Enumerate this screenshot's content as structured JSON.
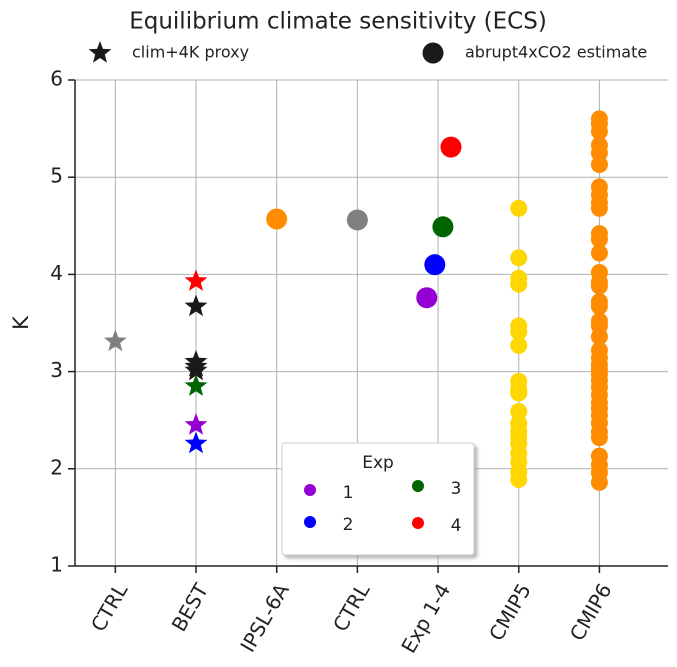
{
  "chart_data": {
    "type": "scatter",
    "title": "Equilibrium climate sensitivity (ECS)",
    "y_label": "K",
    "xlim": [
      -0.5,
      6.85
    ],
    "xticks": [
      {
        "value": 0,
        "label": "CTRL"
      },
      {
        "value": 1,
        "label": "BEST"
      },
      {
        "value": 2,
        "label": "IPSL-6A"
      },
      {
        "value": 3,
        "label": "CTRL"
      },
      {
        "value": 4,
        "label": "Exp 1-4"
      },
      {
        "value": 5,
        "label": "CMIP5"
      },
      {
        "value": 6,
        "label": "CMIP6"
      }
    ],
    "ylim": [
      1,
      6
    ],
    "yticks": [
      1,
      2,
      3,
      4,
      5,
      6
    ],
    "grid": true,
    "series": [
      {
        "name": "clim+4K proxy",
        "marker": "star",
        "color": "#1a1a1a",
        "x": [
          0,
          1,
          1,
          1,
          1,
          1,
          1,
          1,
          1
        ],
        "values": [
          3.31,
          3.93,
          3.67,
          3.1,
          3.05,
          3.01,
          2.85,
          2.45,
          2.26
        ],
        "colors": [
          "#808080",
          "#ff0000",
          "#1a1a1a",
          "#1a1a1a",
          "#1a1a1a",
          "#1a1a1a",
          "#006400",
          "#9400d3",
          "#0000ff"
        ]
      },
      {
        "name": "abrupt4xCO2 estimate",
        "marker": "circle",
        "color": "#1a1a1a",
        "x": [
          2,
          3,
          3.86,
          3.96,
          4.06,
          4.16,
          5,
          5,
          5,
          5,
          5,
          5,
          5,
          5,
          5,
          5,
          5,
          5,
          5,
          5,
          5,
          5,
          5,
          5,
          5,
          6,
          6,
          6,
          6,
          6,
          6,
          6,
          6,
          6,
          6,
          6,
          6,
          6,
          6,
          6,
          6,
          6,
          6,
          6,
          6,
          6,
          6,
          6,
          6,
          6,
          6,
          6,
          6,
          6,
          6,
          6,
          6,
          6,
          6,
          6,
          6,
          6,
          6,
          6
        ],
        "values": [
          4.57,
          4.56,
          3.76,
          4.1,
          4.49,
          5.31,
          4.68,
          4.17,
          3.96,
          3.9,
          3.47,
          3.41,
          3.27,
          2.9,
          2.82,
          2.78,
          2.59,
          2.47,
          2.39,
          2.33,
          2.26,
          2.16,
          2.07,
          1.97,
          1.89,
          5.6,
          5.55,
          5.47,
          5.33,
          5.25,
          5.13,
          4.9,
          4.82,
          4.74,
          4.68,
          4.42,
          4.36,
          4.22,
          4.02,
          3.92,
          3.88,
          3.72,
          3.67,
          3.52,
          3.47,
          3.36,
          3.22,
          3.14,
          3.07,
          3.02,
          2.97,
          2.91,
          2.84,
          2.76,
          2.68,
          2.62,
          2.55,
          2.47,
          2.38,
          2.32,
          2.13,
          2.04,
          1.96,
          1.86
        ],
        "colors": [
          "#ff8c00",
          "#808080",
          "#9400d3",
          "#0000ff",
          "#006400",
          "#ff0000",
          "#ffd700",
          "#ffd700",
          "#ffd700",
          "#ffd700",
          "#ffd700",
          "#ffd700",
          "#ffd700",
          "#ffd700",
          "#ffd700",
          "#ffd700",
          "#ffd700",
          "#ffd700",
          "#ffd700",
          "#ffd700",
          "#ffd700",
          "#ffd700",
          "#ffd700",
          "#ffd700",
          "#ffd700",
          "#ff8c00",
          "#ff8c00",
          "#ff8c00",
          "#ff8c00",
          "#ff8c00",
          "#ff8c00",
          "#ff8c00",
          "#ff8c00",
          "#ff8c00",
          "#ff8c00",
          "#ff8c00",
          "#ff8c00",
          "#ff8c00",
          "#ff8c00",
          "#ff8c00",
          "#ff8c00",
          "#ff8c00",
          "#ff8c00",
          "#ff8c00",
          "#ff8c00",
          "#ff8c00",
          "#ff8c00",
          "#ff8c00",
          "#ff8c00",
          "#ff8c00",
          "#ff8c00",
          "#ff8c00",
          "#ff8c00",
          "#ff8c00",
          "#ff8c00",
          "#ff8c00",
          "#ff8c00",
          "#ff8c00",
          "#ff8c00",
          "#ff8c00",
          "#ff8c00",
          "#ff8c00",
          "#ff8c00",
          "#ff8c00"
        ]
      }
    ],
    "hue_legend": {
      "title": "Exp",
      "labels": [
        "1",
        "2",
        "3",
        "4"
      ],
      "colors": [
        "#9400d3",
        "#0000ff",
        "#006400",
        "#ff0000"
      ]
    }
  }
}
